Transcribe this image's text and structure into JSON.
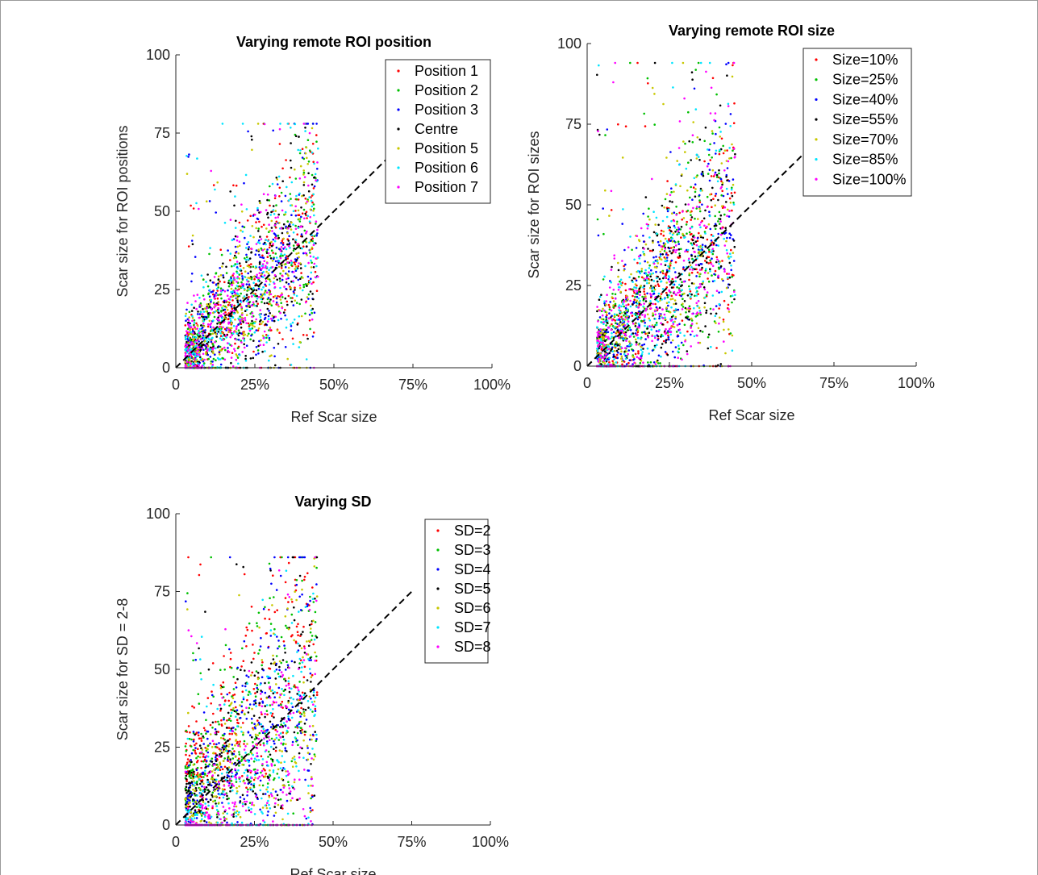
{
  "chart_data": [
    {
      "type": "scatter",
      "title": "Varying remote ROI position",
      "xlabel": "Ref Scar size",
      "ylabel": "Scar size for ROI positions",
      "xlim": [
        0,
        100
      ],
      "ylim": [
        0,
        100
      ],
      "x_ticks": [
        "0",
        "25%",
        "50%",
        "75%",
        "100%"
      ],
      "y_ticks": [
        "0",
        "25",
        "50",
        "75",
        "100"
      ],
      "grid": false,
      "legend_placement": "top-right",
      "reference_line": {
        "style": "dashed",
        "x": [
          0,
          75
        ],
        "y": [
          0,
          75
        ]
      },
      "series": [
        {
          "name": "Position 1",
          "color": "#ff0000"
        },
        {
          "name": "Position 2",
          "color": "#00c000"
        },
        {
          "name": "Position 3",
          "color": "#0000ff"
        },
        {
          "name": "Centre",
          "color": "#000000"
        },
        {
          "name": "Position 5",
          "color": "#c8c800"
        },
        {
          "name": "Position 6",
          "color": "#00e5ff"
        },
        {
          "name": "Position 7",
          "color": "#ff00ff"
        }
      ],
      "distribution": {
        "x_range": [
          3,
          45
        ],
        "y_range": [
          0,
          78
        ],
        "points_per_series": 300,
        "spread_factor": 0.75
      }
    },
    {
      "type": "scatter",
      "title": "Varying remote ROI size",
      "xlabel": "Ref Scar size",
      "ylabel": "Scar size for ROI sizes",
      "xlim": [
        0,
        100
      ],
      "ylim": [
        0,
        100
      ],
      "x_ticks": [
        "0",
        "25%",
        "50%",
        "75%",
        "100%"
      ],
      "y_ticks": [
        "0",
        "25",
        "50",
        "75",
        "100"
      ],
      "grid": false,
      "legend_placement": "top-right",
      "reference_line": {
        "style": "dashed",
        "x": [
          0,
          75
        ],
        "y": [
          0,
          75
        ]
      },
      "series": [
        {
          "name": "Size=10%",
          "color": "#ff0000"
        },
        {
          "name": "Size=25%",
          "color": "#00c000"
        },
        {
          "name": "Size=40%",
          "color": "#0000ff"
        },
        {
          "name": "Size=55%",
          "color": "#000000"
        },
        {
          "name": "Size=70%",
          "color": "#c8c800"
        },
        {
          "name": "Size=85%",
          "color": "#00e5ff"
        },
        {
          "name": "Size=100%",
          "color": "#ff00ff"
        }
      ],
      "distribution": {
        "x_range": [
          3,
          45
        ],
        "y_range": [
          0,
          94
        ],
        "points_per_series": 300,
        "spread_factor": 0.9
      }
    },
    {
      "type": "scatter",
      "title": "Varying SD",
      "xlabel": "Ref Scar size",
      "ylabel": "Scar size for SD = 2-8",
      "xlim": [
        0,
        100
      ],
      "ylim": [
        0,
        100
      ],
      "x_ticks": [
        "0",
        "25%",
        "50%",
        "75%",
        "100%"
      ],
      "y_ticks": [
        "0",
        "25",
        "50",
        "75",
        "100"
      ],
      "grid": false,
      "legend_placement": "top-right",
      "reference_line": {
        "style": "dashed",
        "x": [
          0,
          75
        ],
        "y": [
          0,
          75
        ]
      },
      "series": [
        {
          "name": "SD=2",
          "color": "#ff0000"
        },
        {
          "name": "SD=3",
          "color": "#00c000"
        },
        {
          "name": "SD=4",
          "color": "#0000ff"
        },
        {
          "name": "SD=5",
          "color": "#000000"
        },
        {
          "name": "SD=6",
          "color": "#c8c800"
        },
        {
          "name": "SD=7",
          "color": "#00e5ff"
        },
        {
          "name": "SD=8",
          "color": "#ff00ff"
        }
      ],
      "distribution": {
        "x_range": [
          3,
          45
        ],
        "y_range": [
          0,
          86
        ],
        "points_per_series": 300,
        "spread_factor": 1.0
      }
    }
  ]
}
